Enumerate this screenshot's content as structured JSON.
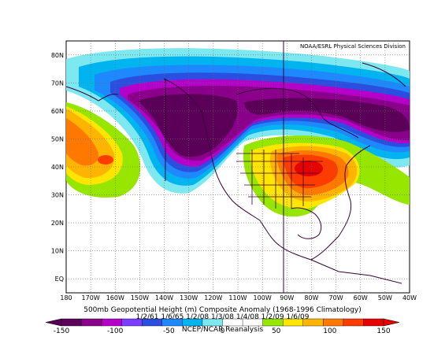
{
  "credit": "NOAA/ESRL Physical Sciences Division",
  "title": "500mb Geopotential Height (m) Composite Anomaly (1968-1996 Climatology)",
  "dates": "1/2/61 1/6/65 1/2/08 1/3/08 1/4/08 1/2/09 1/6/09",
  "source": "NCEP/NCAR Reanalysis",
  "lat_labels": [
    "80N",
    "70N",
    "60N",
    "50N",
    "40N",
    "30N",
    "20N",
    "10N",
    "EQ"
  ],
  "lon_labels": [
    "180",
    "170W",
    "160W",
    "150W",
    "140W",
    "130W",
    "120W",
    "110W",
    "100W",
    "90W",
    "80W",
    "70W",
    "60W",
    "50W",
    "40W"
  ],
  "colorbar": {
    "ticks": [
      "-150",
      "-100",
      "-50",
      "0",
      "50",
      "100",
      "150"
    ],
    "colors": [
      "#5a0058",
      "#8a008a",
      "#b400c8",
      "#7a3cff",
      "#2a4fe0",
      "#1e88ff",
      "#00b4f0",
      "#7de8f0",
      "#ffffff",
      "#ffffff",
      "#96e600",
      "#ffe600",
      "#ffb400",
      "#ff7800",
      "#ff3c00",
      "#e60000"
    ]
  },
  "anomaly_colors": {
    "neg_strong": "#58005a",
    "neg_mid": "#8a008a",
    "neg_light": "#b400c8",
    "neg_blue_dark": "#2a4fe0",
    "neg_blue": "#1e88ff",
    "neg_cyan": "#00b4f0",
    "neg_pale": "#7de8f0",
    "pos_green": "#96e600",
    "pos_yellow": "#ffe600",
    "pos_orange": "#ffb400",
    "pos_dark_orange": "#ff7800",
    "pos_red": "#ff3c00",
    "pos_strong": "#e60000"
  }
}
